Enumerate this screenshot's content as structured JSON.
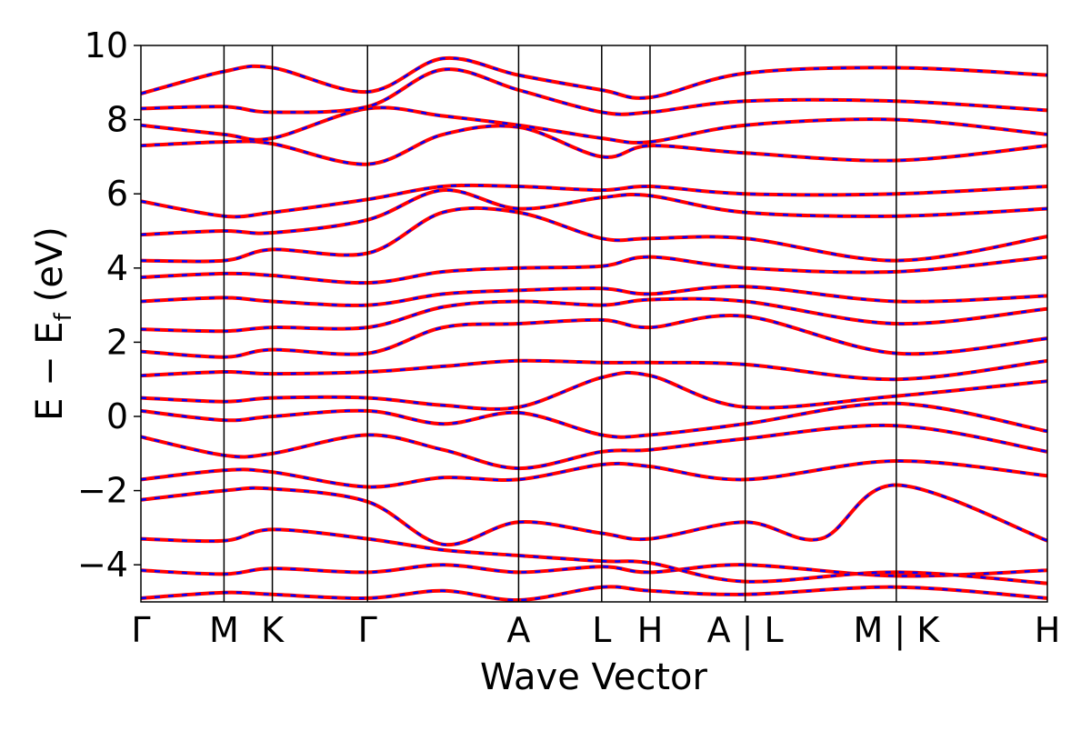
{
  "chart_data": {
    "type": "line",
    "title": "",
    "xlabel": "Wave Vector",
    "ylabel_main": "E − E",
    "ylabel_sub": "f",
    "ylabel_unit": "(eV)",
    "ylim": [
      -5,
      10
    ],
    "yticks": [
      {
        "value": 10,
        "label": "10"
      },
      {
        "value": 8,
        "label": "8"
      },
      {
        "value": 6,
        "label": "6"
      },
      {
        "value": 4,
        "label": "4"
      },
      {
        "value": 2,
        "label": "2"
      },
      {
        "value": 0,
        "label": "0"
      },
      {
        "value": -2,
        "label": "−2"
      },
      {
        "value": -4,
        "label": "−4"
      }
    ],
    "kpath": [
      {
        "label": "Γ",
        "x": 0.0
      },
      {
        "label": "M",
        "x": 0.55
      },
      {
        "label": "K",
        "x": 0.87
      },
      {
        "label": "Γ",
        "x": 1.5
      },
      {
        "label": "A",
        "x": 2.5
      },
      {
        "label": "L",
        "x": 3.05
      },
      {
        "label": "H",
        "x": 3.37
      },
      {
        "label": "A | L",
        "x": 4.0
      },
      {
        "label": "M | K",
        "x": 5.0
      },
      {
        "label": "H",
        "x": 6.0
      }
    ],
    "xlim": [
      0,
      6.0
    ],
    "grid": false,
    "legend": "none",
    "series": [
      {
        "color": "#ff0000",
        "style": "solid",
        "width": 4
      },
      {
        "color": "#0000ff",
        "style": "dashed",
        "width": 2.5
      }
    ],
    "bands": [
      [
        [
          0,
          -4.9
        ],
        [
          0.55,
          -4.75
        ],
        [
          0.87,
          -4.8
        ],
        [
          1.5,
          -4.9
        ],
        [
          2.0,
          -4.7
        ],
        [
          2.5,
          -4.95
        ],
        [
          3.05,
          -4.6
        ],
        [
          3.37,
          -4.7
        ],
        [
          4.0,
          -4.8
        ],
        [
          5.0,
          -4.6
        ],
        [
          6.0,
          -4.9
        ]
      ],
      [
        [
          0,
          -4.15
        ],
        [
          0.55,
          -4.25
        ],
        [
          0.87,
          -4.1
        ],
        [
          1.5,
          -4.2
        ],
        [
          2.0,
          -4.0
        ],
        [
          2.5,
          -4.2
        ],
        [
          3.05,
          -4.05
        ],
        [
          3.37,
          -4.2
        ],
        [
          4.0,
          -4.0
        ],
        [
          5.0,
          -4.3
        ],
        [
          6.0,
          -4.15
        ]
      ],
      [
        [
          0,
          -3.3
        ],
        [
          0.55,
          -3.35
        ],
        [
          0.87,
          -3.05
        ],
        [
          1.5,
          -3.3
        ],
        [
          2.0,
          -3.6
        ],
        [
          2.5,
          -3.75
        ],
        [
          3.05,
          -3.9
        ],
        [
          3.37,
          -3.95
        ],
        [
          4.0,
          -4.45
        ],
        [
          5.0,
          -4.2
        ],
        [
          6.0,
          -4.5
        ]
      ],
      [
        [
          0,
          -2.25
        ],
        [
          0.55,
          -2.0
        ],
        [
          0.87,
          -1.95
        ],
        [
          1.5,
          -2.3
        ],
        [
          2.0,
          -3.45
        ],
        [
          2.5,
          -2.85
        ],
        [
          3.05,
          -3.15
        ],
        [
          3.37,
          -3.3
        ],
        [
          4.0,
          -2.85
        ],
        [
          4.5,
          -3.3
        ],
        [
          5.0,
          -1.85
        ],
        [
          6.0,
          -3.35
        ]
      ],
      [
        [
          0,
          -1.7
        ],
        [
          0.55,
          -1.45
        ],
        [
          0.87,
          -1.5
        ],
        [
          1.5,
          -1.9
        ],
        [
          2.0,
          -1.65
        ],
        [
          2.5,
          -1.7
        ],
        [
          3.05,
          -1.3
        ],
        [
          3.37,
          -1.35
        ],
        [
          4.0,
          -1.7
        ],
        [
          5.0,
          -1.2
        ],
        [
          6.0,
          -1.6
        ]
      ],
      [
        [
          0,
          -0.55
        ],
        [
          0.55,
          -1.05
        ],
        [
          0.87,
          -1.0
        ],
        [
          1.5,
          -0.5
        ],
        [
          2.0,
          -0.9
        ],
        [
          2.5,
          -1.4
        ],
        [
          3.05,
          -0.95
        ],
        [
          3.37,
          -0.9
        ],
        [
          4.0,
          -0.6
        ],
        [
          5.0,
          -0.25
        ],
        [
          6.0,
          -0.95
        ]
      ],
      [
        [
          0,
          0.15
        ],
        [
          0.55,
          -0.1
        ],
        [
          0.87,
          0.0
        ],
        [
          1.5,
          0.15
        ],
        [
          2.0,
          -0.2
        ],
        [
          2.5,
          0.1
        ],
        [
          3.05,
          -0.5
        ],
        [
          3.37,
          -0.5
        ],
        [
          4.0,
          -0.2
        ],
        [
          5.0,
          0.35
        ],
        [
          6.0,
          -0.4
        ]
      ],
      [
        [
          0,
          0.5
        ],
        [
          0.55,
          0.4
        ],
        [
          0.87,
          0.5
        ],
        [
          1.5,
          0.5
        ],
        [
          2.0,
          0.3
        ],
        [
          2.5,
          0.25
        ],
        [
          3.05,
          1.05
        ],
        [
          3.37,
          1.1
        ],
        [
          4.0,
          0.25
        ],
        [
          5.0,
          0.55
        ],
        [
          6.0,
          0.95
        ]
      ],
      [
        [
          0,
          1.1
        ],
        [
          0.55,
          1.2
        ],
        [
          0.87,
          1.15
        ],
        [
          1.5,
          1.2
        ],
        [
          2.0,
          1.35
        ],
        [
          2.5,
          1.5
        ],
        [
          3.05,
          1.45
        ],
        [
          3.37,
          1.45
        ],
        [
          4.0,
          1.4
        ],
        [
          5.0,
          1.0
        ],
        [
          6.0,
          1.5
        ]
      ],
      [
        [
          0,
          1.75
        ],
        [
          0.55,
          1.6
        ],
        [
          0.87,
          1.8
        ],
        [
          1.5,
          1.7
        ],
        [
          2.0,
          2.4
        ],
        [
          2.5,
          2.5
        ],
        [
          3.05,
          2.6
        ],
        [
          3.37,
          2.4
        ],
        [
          4.0,
          2.7
        ],
        [
          5.0,
          1.7
        ],
        [
          6.0,
          2.1
        ]
      ],
      [
        [
          0,
          2.35
        ],
        [
          0.55,
          2.3
        ],
        [
          0.87,
          2.4
        ],
        [
          1.5,
          2.4
        ],
        [
          2.0,
          2.95
        ],
        [
          2.5,
          3.1
        ],
        [
          3.05,
          3.0
        ],
        [
          3.37,
          3.15
        ],
        [
          4.0,
          3.1
        ],
        [
          5.0,
          2.5
        ],
        [
          6.0,
          2.9
        ]
      ],
      [
        [
          0,
          3.1
        ],
        [
          0.55,
          3.2
        ],
        [
          0.87,
          3.1
        ],
        [
          1.5,
          3.0
        ],
        [
          2.0,
          3.3
        ],
        [
          2.5,
          3.4
        ],
        [
          3.05,
          3.45
        ],
        [
          3.37,
          3.3
        ],
        [
          4.0,
          3.5
        ],
        [
          5.0,
          3.1
        ],
        [
          6.0,
          3.25
        ]
      ],
      [
        [
          0,
          3.75
        ],
        [
          0.55,
          3.85
        ],
        [
          0.87,
          3.8
        ],
        [
          1.5,
          3.6
        ],
        [
          2.0,
          3.9
        ],
        [
          2.5,
          4.0
        ],
        [
          3.05,
          4.05
        ],
        [
          3.37,
          4.3
        ],
        [
          4.0,
          4.0
        ],
        [
          5.0,
          3.9
        ],
        [
          6.0,
          4.3
        ]
      ],
      [
        [
          0,
          4.2
        ],
        [
          0.55,
          4.2
        ],
        [
          0.87,
          4.5
        ],
        [
          1.5,
          4.4
        ],
        [
          2.0,
          5.5
        ],
        [
          2.5,
          5.5
        ],
        [
          3.05,
          4.8
        ],
        [
          3.37,
          4.8
        ],
        [
          4.0,
          4.8
        ],
        [
          5.0,
          4.2
        ],
        [
          6.0,
          4.85
        ]
      ],
      [
        [
          0,
          4.9
        ],
        [
          0.55,
          5.0
        ],
        [
          0.87,
          4.95
        ],
        [
          1.5,
          5.3
        ],
        [
          2.0,
          6.1
        ],
        [
          2.5,
          5.6
        ],
        [
          3.05,
          5.9
        ],
        [
          3.37,
          5.95
        ],
        [
          4.0,
          5.5
        ],
        [
          5.0,
          5.4
        ],
        [
          6.0,
          5.6
        ]
      ],
      [
        [
          0,
          5.8
        ],
        [
          0.55,
          5.4
        ],
        [
          0.87,
          5.5
        ],
        [
          1.5,
          5.85
        ],
        [
          2.0,
          6.2
        ],
        [
          2.5,
          6.2
        ],
        [
          3.05,
          6.1
        ],
        [
          3.37,
          6.2
        ],
        [
          4.0,
          6.0
        ],
        [
          5.0,
          6.0
        ],
        [
          6.0,
          6.2
        ]
      ],
      [
        [
          0,
          7.3
        ],
        [
          0.55,
          7.4
        ],
        [
          0.87,
          7.35
        ],
        [
          1.5,
          6.8
        ],
        [
          2.0,
          7.6
        ],
        [
          2.5,
          7.8
        ],
        [
          3.05,
          7.0
        ],
        [
          3.37,
          7.3
        ],
        [
          4.0,
          7.1
        ],
        [
          5.0,
          6.9
        ],
        [
          6.0,
          7.3
        ]
      ],
      [
        [
          0,
          7.85
        ],
        [
          0.55,
          7.6
        ],
        [
          0.87,
          7.5
        ],
        [
          1.5,
          8.3
        ],
        [
          2.0,
          8.1
        ],
        [
          2.5,
          7.85
        ],
        [
          3.05,
          7.5
        ],
        [
          3.37,
          7.4
        ],
        [
          4.0,
          7.85
        ],
        [
          5.0,
          8.0
        ],
        [
          6.0,
          7.6
        ]
      ],
      [
        [
          0,
          8.3
        ],
        [
          0.55,
          8.35
        ],
        [
          0.87,
          8.2
        ],
        [
          1.5,
          8.35
        ],
        [
          2.0,
          9.35
        ],
        [
          2.5,
          8.8
        ],
        [
          3.05,
          8.2
        ],
        [
          3.37,
          8.2
        ],
        [
          4.0,
          8.5
        ],
        [
          5.0,
          8.5
        ],
        [
          6.0,
          8.25
        ]
      ],
      [
        [
          0,
          8.7
        ],
        [
          0.55,
          9.3
        ],
        [
          0.87,
          9.4
        ],
        [
          1.5,
          8.75
        ],
        [
          2.0,
          9.65
        ],
        [
          2.5,
          9.2
        ],
        [
          3.05,
          8.8
        ],
        [
          3.37,
          8.6
        ],
        [
          4.0,
          9.25
        ],
        [
          5.0,
          9.4
        ],
        [
          6.0,
          9.2
        ]
      ]
    ]
  }
}
